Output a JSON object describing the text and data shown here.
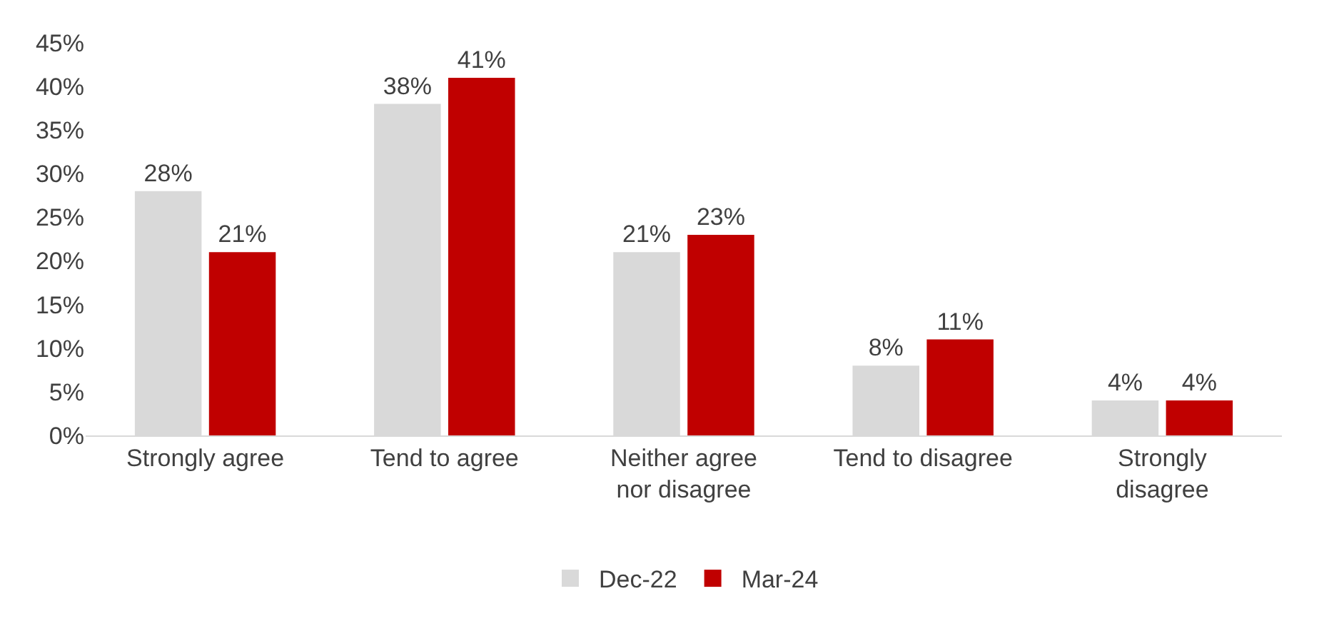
{
  "chart_data": {
    "type": "bar",
    "categories": [
      "Strongly agree",
      "Tend to agree",
      "Neither agree\nnor disagree",
      "Tend to disagree",
      "Strongly\ndisagree"
    ],
    "series": [
      {
        "name": "Dec-22",
        "color": "#d9d9d9",
        "values": [
          28,
          38,
          21,
          8,
          4
        ],
        "value_labels": [
          "28%",
          "38%",
          "21%",
          "8%",
          "4%"
        ]
      },
      {
        "name": "Mar-24",
        "color": "#c00000",
        "values": [
          21,
          41,
          23,
          11,
          4
        ],
        "value_labels": [
          "21%",
          "41%",
          "23%",
          "11%",
          "4%"
        ]
      }
    ],
    "ylim": [
      0,
      45
    ],
    "yticks": [
      {
        "value": 0,
        "label": "0%"
      },
      {
        "value": 5,
        "label": "5%"
      },
      {
        "value": 10,
        "label": "10%"
      },
      {
        "value": 15,
        "label": "15%"
      },
      {
        "value": 20,
        "label": "20%"
      },
      {
        "value": 25,
        "label": "25%"
      },
      {
        "value": 30,
        "label": "30%"
      },
      {
        "value": 35,
        "label": "35%"
      },
      {
        "value": 40,
        "label": "40%"
      },
      {
        "value": 45,
        "label": "45%"
      }
    ],
    "legend": "bottom"
  }
}
